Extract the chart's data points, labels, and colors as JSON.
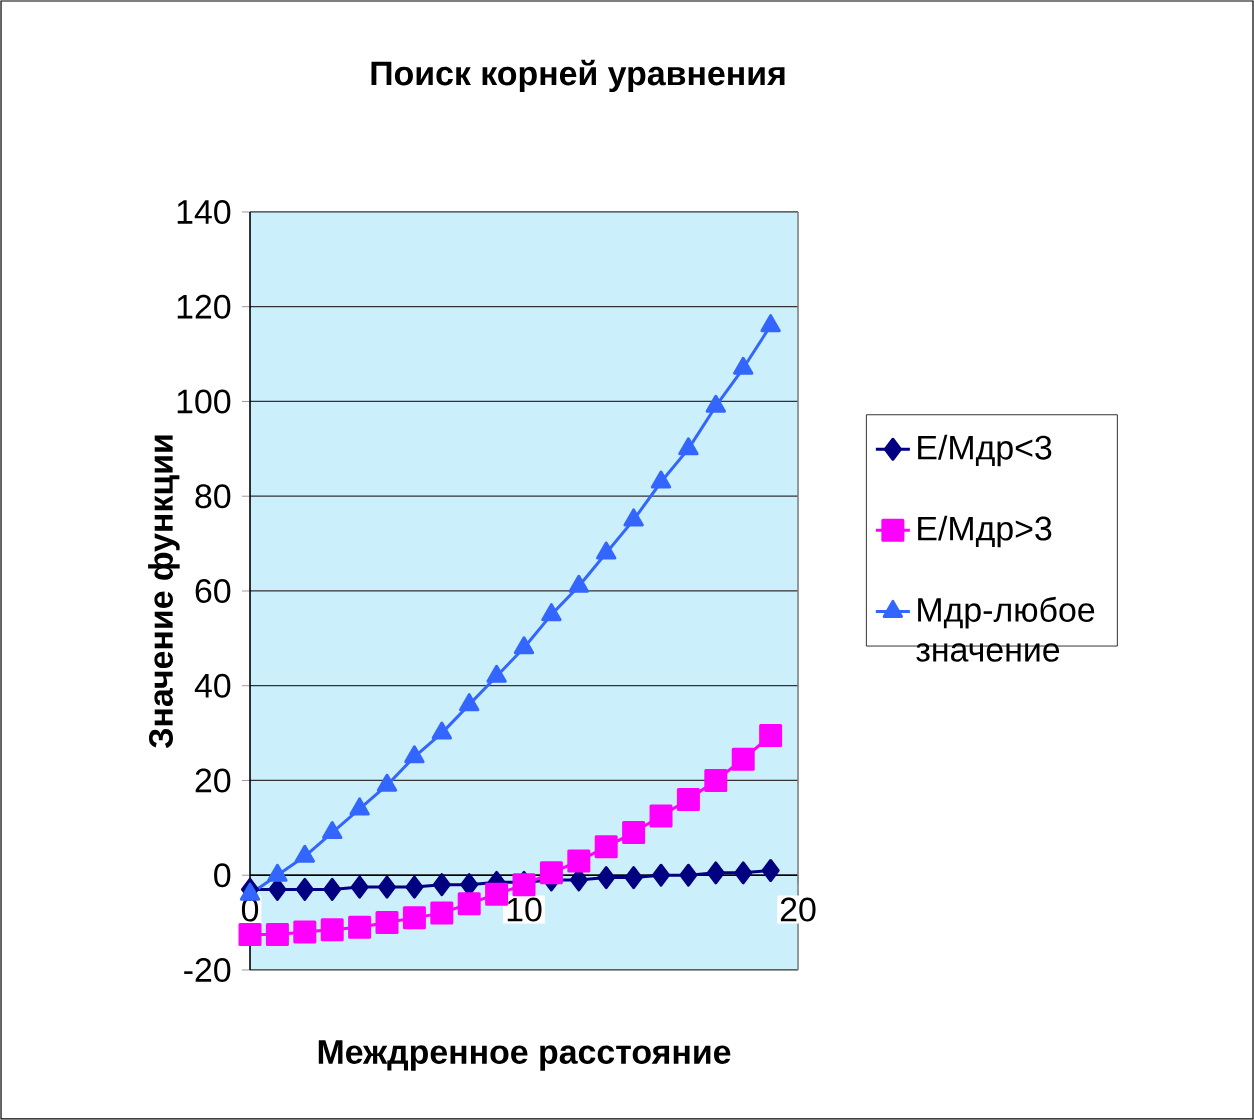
{
  "chart_data": {
    "type": "line",
    "title": "Поиск корней уравнения",
    "xlabel": "Междренное расстояние",
    "ylabel": "Значение функции",
    "x": [
      0,
      1,
      2,
      3,
      4,
      5,
      6,
      7,
      8,
      9,
      10,
      11,
      12,
      13,
      14,
      15,
      16,
      17,
      18,
      19
    ],
    "series": [
      {
        "name": "E/Мдр<3",
        "color": "#000080",
        "marker": "diamond",
        "values": [
          -3,
          -3,
          -3,
          -3,
          -2.5,
          -2.5,
          -2.5,
          -2,
          -2,
          -1.5,
          -1.5,
          -1,
          -1,
          -0.5,
          -0.5,
          0,
          0,
          0.5,
          0.5,
          1
        ]
      },
      {
        "name": "E/Мдр>3",
        "color": "#ff00ff",
        "marker": "square",
        "values": [
          -12.5,
          -12.5,
          -12,
          -11.5,
          -11,
          -10,
          -9,
          -8,
          -6,
          -4,
          -2,
          0.5,
          3,
          6,
          9,
          12.5,
          16,
          20,
          24.5,
          29.5
        ]
      },
      {
        "name": "Мдр-любое значение",
        "color": "#3366ff",
        "marker": "triangle",
        "values": [
          -4,
          0,
          4,
          9,
          14,
          19,
          25,
          30,
          36,
          42,
          48,
          55,
          61,
          68,
          75,
          83,
          90,
          99,
          107,
          116
        ]
      }
    ],
    "xlim": [
      0,
      20
    ],
    "xticks": [
      0,
      10,
      20
    ],
    "ylim": [
      -20,
      140
    ],
    "yticks": [
      -20,
      0,
      20,
      40,
      60,
      80,
      100,
      120,
      140
    ],
    "grid": "y",
    "legend": "right",
    "line_style": "solid"
  }
}
